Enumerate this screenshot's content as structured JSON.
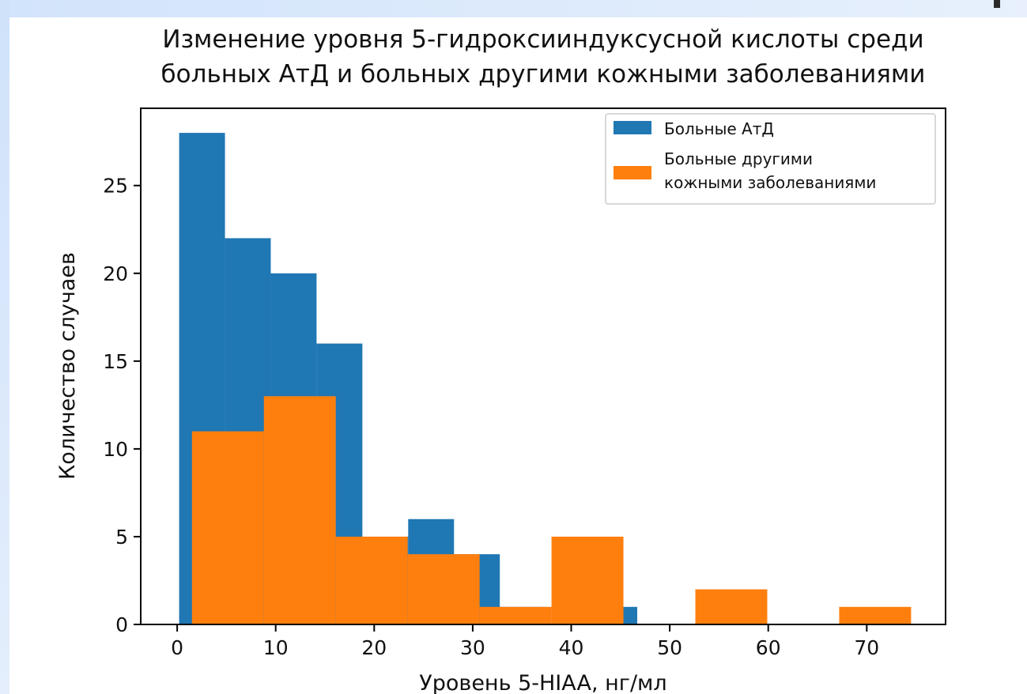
{
  "chart_data": {
    "type": "bar",
    "title": "Изменение уровня 5-гидроксииндуксусной кислоты среди\nбольных АтД и больных другими кожными заболеваниями",
    "xlabel": "Уровень 5-HIAA, нг/мл",
    "ylabel": "Количество случаев",
    "xlim": [
      -3.7,
      78.0
    ],
    "ylim": [
      0,
      29.4
    ],
    "xticks": [
      0,
      10,
      20,
      30,
      40,
      50,
      60,
      70
    ],
    "yticks": [
      0,
      5,
      10,
      15,
      20,
      25
    ],
    "legend_position": "top-right",
    "series": [
      {
        "name": "Больные АтД",
        "color": "#1f77b4",
        "bins": [
          {
            "x0": 0.2,
            "x1": 4.85,
            "value": 28
          },
          {
            "x0": 4.85,
            "x1": 9.5,
            "value": 22
          },
          {
            "x0": 9.5,
            "x1": 14.15,
            "value": 20
          },
          {
            "x0": 14.15,
            "x1": 18.8,
            "value": 16
          },
          {
            "x0": 18.8,
            "x1": 23.45,
            "value": 5
          },
          {
            "x0": 23.45,
            "x1": 28.1,
            "value": 6
          },
          {
            "x0": 28.1,
            "x1": 32.75,
            "value": 4
          },
          {
            "x0": 32.75,
            "x1": 37.4,
            "value": 1
          },
          {
            "x0": 37.4,
            "x1": 42.05,
            "value": 0
          },
          {
            "x0": 42.05,
            "x1": 46.7,
            "value": 1
          }
        ]
      },
      {
        "name": "Больные другими\nкожными заболеваниями",
        "color": "#ff7f0e",
        "bins": [
          {
            "x0": 1.5,
            "x1": 8.8,
            "value": 11
          },
          {
            "x0": 8.8,
            "x1": 16.1,
            "value": 13
          },
          {
            "x0": 16.1,
            "x1": 23.4,
            "value": 5
          },
          {
            "x0": 23.4,
            "x1": 30.7,
            "value": 4
          },
          {
            "x0": 30.7,
            "x1": 38.0,
            "value": 1
          },
          {
            "x0": 38.0,
            "x1": 45.3,
            "value": 5
          },
          {
            "x0": 45.3,
            "x1": 52.6,
            "value": 0
          },
          {
            "x0": 52.6,
            "x1": 59.9,
            "value": 2
          },
          {
            "x0": 59.9,
            "x1": 67.2,
            "value": 0
          },
          {
            "x0": 67.2,
            "x1": 74.5,
            "value": 1
          }
        ]
      }
    ]
  }
}
